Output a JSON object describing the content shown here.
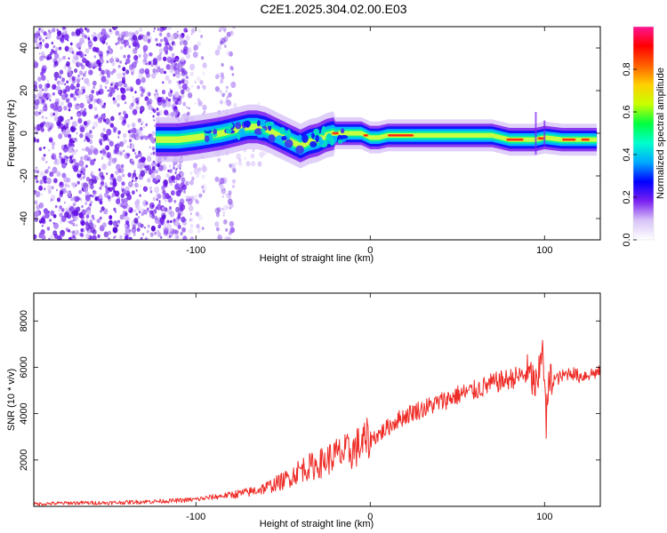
{
  "title": "C2E1.2025.304.02.00.E03",
  "colors": {
    "snr_line": "#ee2a25",
    "grid_frame": "#000000",
    "noise": "#7a2ff0",
    "ridge_core": "#ff1d1d"
  },
  "chart_data": [
    {
      "type": "heatmap",
      "name": "spectrogram",
      "xlabel": "Height of straight line (km)",
      "ylabel": "Frequency (Hz)",
      "xlim": [
        -193,
        132
      ],
      "ylim": [
        -50,
        50
      ],
      "xticks": [
        -100,
        0,
        100
      ],
      "yticks": [
        -40,
        -20,
        0,
        20,
        40
      ],
      "tick_labels_x": [
        "-100",
        "0",
        "100"
      ],
      "tick_labels_y": [
        "-40",
        "-20",
        "0",
        "20",
        "40"
      ],
      "ridge": {
        "x": [
          -123,
          -110,
          -100,
          -92,
          -85,
          -80,
          -75,
          -70,
          -65,
          -60,
          -55,
          -50,
          -45,
          -40,
          -35,
          -30,
          -25,
          -20,
          -15,
          -10,
          -5,
          0,
          5,
          10,
          20,
          40,
          60,
          70,
          80,
          90,
          95,
          100,
          110,
          120,
          130
        ],
        "freq": [
          -3,
          -3,
          -2,
          -1,
          0,
          1,
          2,
          3,
          3,
          2,
          0,
          -2,
          -4,
          -6,
          -4,
          -3,
          -1,
          0,
          0,
          0,
          0,
          -2,
          -2,
          -1,
          -1,
          -1,
          -1,
          -1,
          -3,
          -3,
          -3,
          -2,
          -3,
          -3,
          -3
        ]
      },
      "colorbar": {
        "label": "Normalized spectral amplitude",
        "range": [
          0,
          1
        ],
        "ticks": [
          0.0,
          0.2,
          0.4,
          0.6,
          0.8
        ],
        "tick_labels": [
          "0.0",
          "0.2",
          "0.4",
          "0.6",
          "0.8"
        ],
        "stops": [
          "#ffffff",
          "#d8c4f7",
          "#7a20f0",
          "#0000ff",
          "#00aaff",
          "#00ffcc",
          "#00ff40",
          "#c8ff00",
          "#ffd000",
          "#ff6000",
          "#ff0000",
          "#ff1493"
        ]
      }
    },
    {
      "type": "line",
      "name": "snr",
      "xlabel": "Height of straight line (km)",
      "ylabel": "SNR (10 * v/v)",
      "xlim": [
        -193,
        132
      ],
      "ylim": [
        0,
        9200
      ],
      "xticks": [
        -100,
        0,
        100
      ],
      "yticks": [
        2000,
        4000,
        6000,
        8000
      ],
      "tick_labels_x": [
        "-100",
        "0",
        "100"
      ],
      "tick_labels_y": [
        "2000",
        "4000",
        "6000",
        "8000"
      ],
      "series": [
        {
          "name": "SNR",
          "x": [
            -193,
            -170,
            -150,
            -130,
            -110,
            -100,
            -90,
            -80,
            -70,
            -60,
            -50,
            -45,
            -40,
            -35,
            -30,
            -25,
            -20,
            -15,
            -10,
            -5,
            0,
            5,
            10,
            15,
            20,
            25,
            30,
            40,
            50,
            60,
            70,
            80,
            85,
            90,
            93,
            96,
            98,
            99,
            100,
            101,
            102,
            104,
            107,
            110,
            115,
            120,
            125,
            132
          ],
          "values": [
            100,
            150,
            150,
            200,
            250,
            300,
            400,
            500,
            600,
            800,
            1100,
            1300,
            1600,
            1700,
            1800,
            2000,
            2200,
            2300,
            2400,
            2700,
            2900,
            3100,
            3400,
            3700,
            3900,
            4100,
            4200,
            4500,
            4800,
            5000,
            5300,
            5500,
            5600,
            5700,
            5500,
            5000,
            6500,
            7500,
            5000,
            3500,
            5000,
            5500,
            5500,
            5600,
            5800,
            5600,
            5700,
            5800
          ]
        }
      ]
    }
  ]
}
